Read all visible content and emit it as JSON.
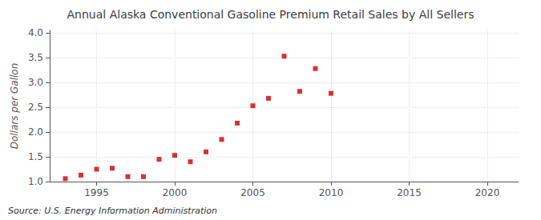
{
  "chart_data": {
    "type": "scatter",
    "title": "Annual Alaska Conventional Gasoline Premium Retail Sales by All Sellers",
    "ylabel": "Dollars per Gallon",
    "source": "Source: U.S. Energy Information Administration",
    "x": [
      1993,
      1994,
      1995,
      1996,
      1997,
      1998,
      1999,
      2000,
      2001,
      2002,
      2003,
      2004,
      2005,
      2006,
      2007,
      2008,
      2009,
      2010
    ],
    "values": [
      1.06,
      1.13,
      1.25,
      1.27,
      1.1,
      1.1,
      1.45,
      1.53,
      1.4,
      1.6,
      1.85,
      2.18,
      2.53,
      2.68,
      3.53,
      2.82,
      3.28,
      2.78
    ],
    "color": "#cc0000",
    "marker": "square",
    "xlim": [
      1992,
      2022
    ],
    "ylim": [
      1.0,
      4.05
    ],
    "xticks": [
      1995,
      2000,
      2005,
      2010,
      2015,
      2020
    ],
    "yticks": [
      {
        "value": 1.0,
        "label": "1.0"
      },
      1.5,
      {
        "value": 2.0,
        "label": "2.0"
      },
      2.5,
      {
        "value": 3.0,
        "label": "3.0"
      },
      3.5,
      {
        "value": 4.0,
        "label": "4.0"
      }
    ],
    "grid": true
  }
}
